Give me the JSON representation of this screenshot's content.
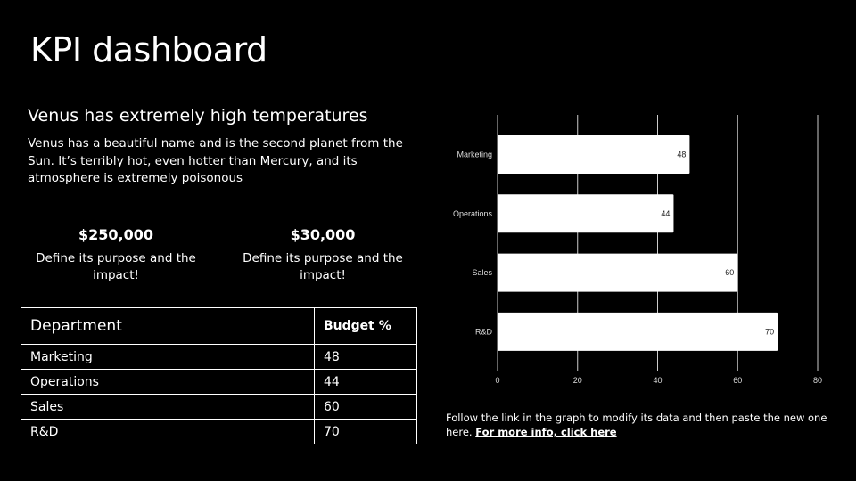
{
  "title": "KPI dashboard",
  "subtitle": "Venus has extremely high temperatures",
  "description": "Venus has a beautiful name and is the second planet from the Sun. It’s terribly hot, even hotter than Mercury, and its atmosphere is extremely poisonous",
  "kpis": [
    {
      "value": "$250,000",
      "desc": "Define its purpose and the impact!"
    },
    {
      "value": "$30,000",
      "desc": "Define its purpose and the impact!"
    }
  ],
  "table": {
    "headers": [
      "Department",
      "Budget %"
    ],
    "rows": [
      [
        "Marketing",
        "48"
      ],
      [
        "Operations",
        "44"
      ],
      [
        "Sales",
        "60"
      ],
      [
        "R&D",
        "70"
      ]
    ]
  },
  "note": {
    "text": "Follow the link in the graph to modify its data and then paste the new one here. ",
    "link": "For more info, click here"
  },
  "chart_data": {
    "type": "bar",
    "orientation": "horizontal",
    "categories": [
      "Marketing",
      "Operations",
      "Sales",
      "R&D"
    ],
    "values": [
      48,
      44,
      60,
      70
    ],
    "xlim": [
      0,
      80
    ],
    "xticks": [
      "0",
      "20",
      "40",
      "60",
      "80"
    ],
    "grid": true,
    "bar_color": "#ffffff",
    "grid_color": "#cccccc"
  }
}
